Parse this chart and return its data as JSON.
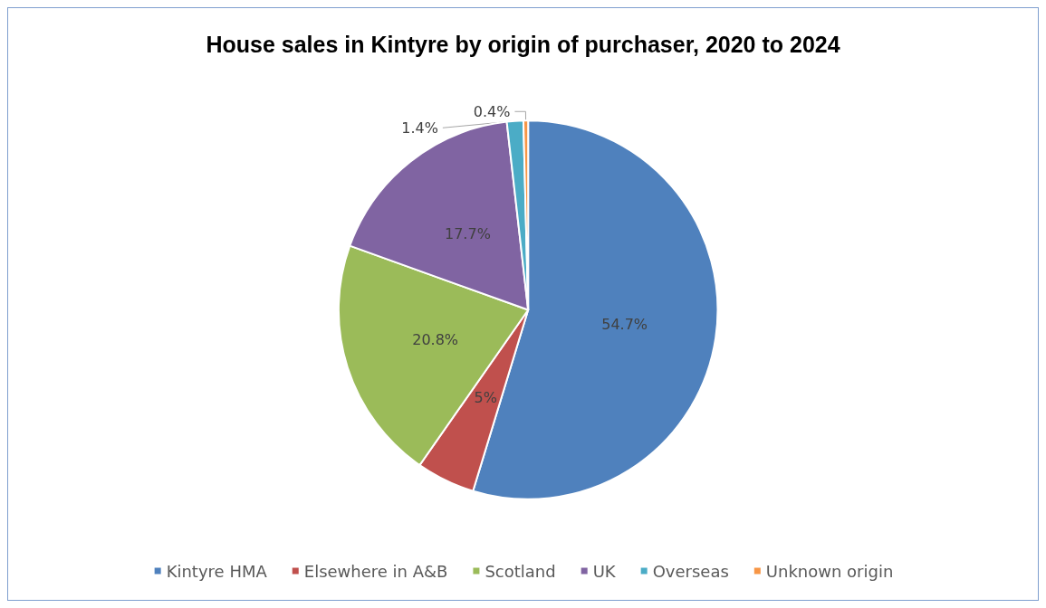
{
  "chart_data": {
    "type": "pie",
    "title": "House sales in Kintyre by origin of purchaser, 2020 to 2024",
    "categories": [
      "Kintyre HMA",
      "Elsewhere in A&B",
      "Scotland",
      "UK",
      "Overseas",
      "Unknown origin"
    ],
    "values": [
      54.7,
      5,
      20.8,
      17.7,
      1.4,
      0.4
    ],
    "colors": [
      "#4f81bd",
      "#c0504d",
      "#9bbb59",
      "#8064a2",
      "#4bacc6",
      "#f79646"
    ],
    "value_labels": [
      "54.7%",
      "5%",
      "20.8%",
      "17.7%",
      "1.4%",
      "0.4%"
    ],
    "legend": "bottom"
  }
}
